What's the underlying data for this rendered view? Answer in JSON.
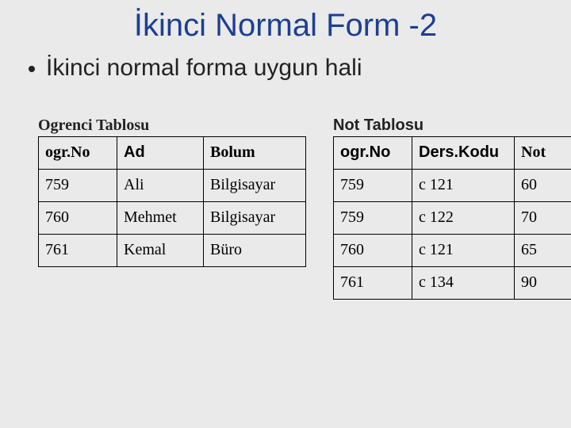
{
  "title": "İkinci Normal Form -2",
  "bulletText": "İkinci normal forma uygun hali",
  "ogrenci": {
    "caption": "Ogrenci Tablosu",
    "columns": [
      "ogr.No",
      "Ad",
      "Bolum"
    ],
    "rows": [
      [
        "759",
        "Ali",
        "Bilgisayar"
      ],
      [
        "760",
        "Mehmet",
        "Bilgisayar"
      ],
      [
        "761",
        "Kemal",
        "Büro"
      ]
    ],
    "headerFontByColumn": [
      "serif",
      "sans",
      "serif"
    ],
    "colWidths": [
      "80px",
      "90px",
      "110px"
    ]
  },
  "notTable": {
    "caption": "Not Tablosu",
    "columns": [
      "ogr.No",
      "Ders.Kodu",
      "Not"
    ],
    "rows": [
      [
        "759",
        "c 121",
        "60"
      ],
      [
        "759",
        "c 122",
        "70"
      ],
      [
        "760",
        "c 121",
        "65"
      ],
      [
        "761",
        "c 134",
        "90"
      ]
    ],
    "headerFontByColumn": [
      "sans",
      "sans",
      "serif"
    ],
    "colWidths": [
      "80px",
      "110px",
      "56px"
    ],
    "captionFont": "sans"
  },
  "colors": {
    "titleColor": "#1c3f94",
    "textColor": "#222222",
    "background": "#eaeaea",
    "border": "#000000"
  }
}
